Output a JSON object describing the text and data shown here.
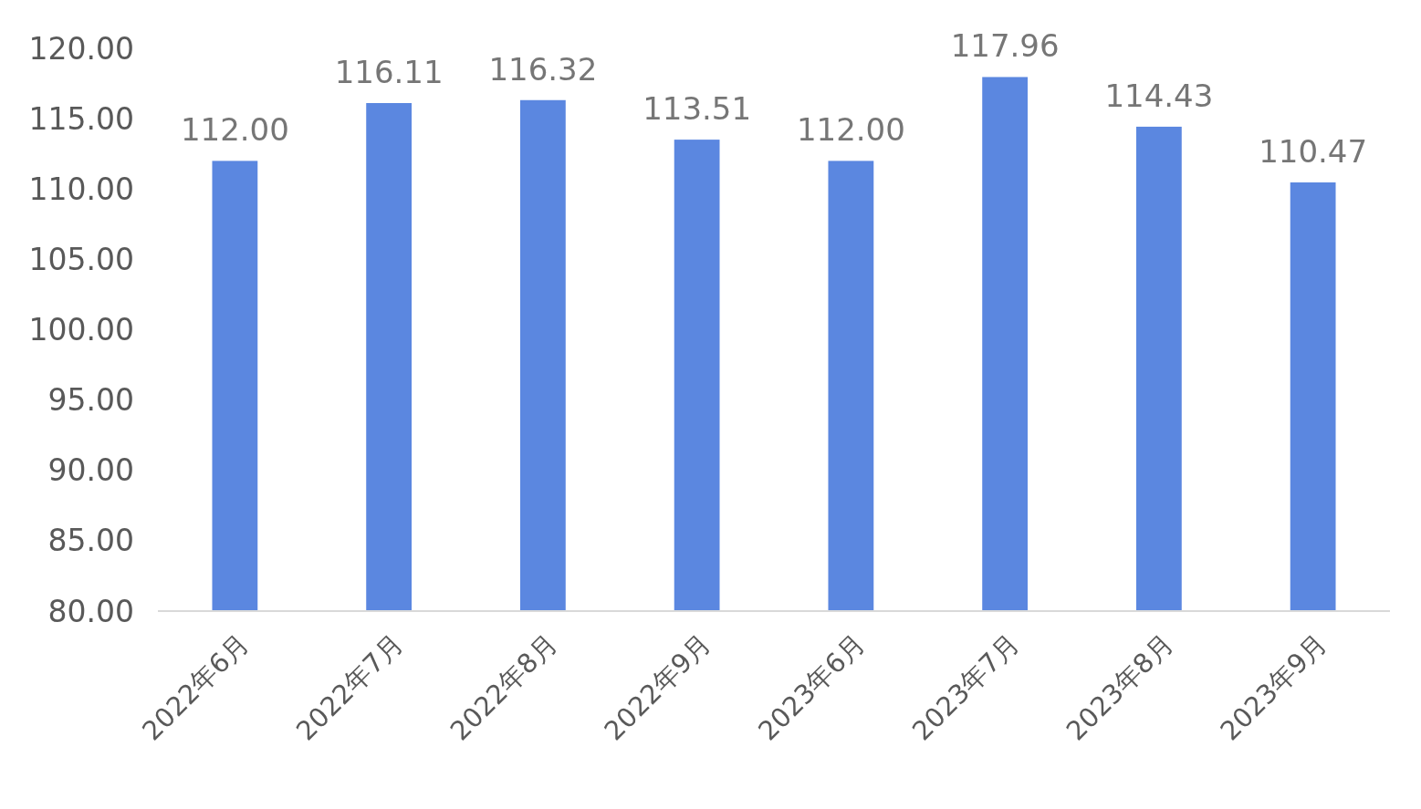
{
  "chart_data": {
    "type": "bar",
    "categories": [
      "2022年6月",
      "2022年7月",
      "2022年8月",
      "2022年9月",
      "2023年6月",
      "2023年7月",
      "2023年8月",
      "2023年9月"
    ],
    "values": [
      112.0,
      116.11,
      116.32,
      113.51,
      112.0,
      117.96,
      114.43,
      110.47
    ],
    "value_labels": [
      "112.00",
      "116.11",
      "116.32",
      "113.51",
      "112.00",
      "117.96",
      "114.43",
      "110.47"
    ],
    "color": "#5b87e0",
    "ylim": [
      80,
      120
    ],
    "yticks": [
      {
        "value": 80,
        "label": "80.00"
      },
      {
        "value": 85,
        "label": "85.00"
      },
      {
        "value": 90,
        "label": "90.00"
      },
      {
        "value": 95,
        "label": "95.00"
      },
      {
        "value": 100,
        "label": "100.00"
      },
      {
        "value": 105,
        "label": "105.00"
      },
      {
        "value": 110,
        "label": "110.00"
      },
      {
        "value": 115,
        "label": "115.00"
      },
      {
        "value": 120,
        "label": "120.00"
      }
    ],
    "grid": false
  }
}
